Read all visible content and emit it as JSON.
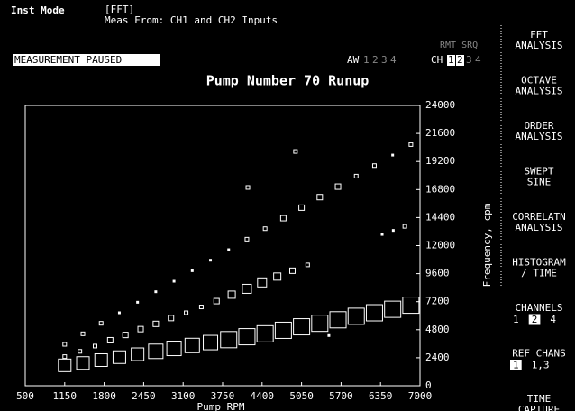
{
  "header": {
    "mode_label": "Inst Mode",
    "mode": "[FFT]",
    "meas_from": "Meas From: CH1 and CH2 Inputs",
    "status": "MEASUREMENT PAUSED",
    "rmt_srq": "RMT SRQ",
    "aw": {
      "label": "AW",
      "options": [
        "1",
        "2",
        "3",
        "4"
      ]
    },
    "ch": {
      "label": "CH",
      "options": [
        "1",
        "2",
        "3",
        "4"
      ],
      "selected": [
        0,
        1
      ]
    }
  },
  "softkeys": [
    {
      "lines": [
        "FFT",
        "ANALYSIS"
      ]
    },
    {
      "lines": [
        "OCTAVE",
        "ANALYSIS"
      ]
    },
    {
      "lines": [
        "ORDER",
        "ANALYSIS"
      ]
    },
    {
      "lines": [
        "SWEPT",
        "SINE"
      ]
    },
    {
      "lines": [
        "CORRELATN",
        "ANALYSIS"
      ]
    },
    {
      "lines": [
        "HISTOGRAM",
        "/ TIME"
      ]
    },
    {
      "lines": [
        "CHANNELS"
      ],
      "options": [
        "1",
        "2",
        "4"
      ],
      "selected": 1
    },
    {
      "lines": [
        "REF CHANS"
      ],
      "options": [
        "1",
        "1,3"
      ],
      "selected": 0
    },
    {
      "lines": [
        "TIME",
        "CAPTURE"
      ]
    }
  ],
  "chart_data": {
    "type": "bubble",
    "title": "Pump Number 70 Runup",
    "x_label": "Pump RPM",
    "y_label": "Frequency, cpm",
    "xlim": [
      500,
      7000
    ],
    "ylim": [
      0,
      24000
    ],
    "xticks": [
      500,
      1150,
      1800,
      2450,
      3100,
      3750,
      4400,
      5050,
      5700,
      6350,
      7000
    ],
    "yticks": [
      0,
      2400,
      4800,
      7200,
      9600,
      12000,
      14400,
      16800,
      19200,
      21600,
      24000
    ],
    "color": "#ffffff",
    "series": [
      {
        "x": [
          1150,
          1450,
          1750,
          2050,
          2350,
          2650,
          2950,
          3250,
          3550,
          3850,
          4150,
          4450,
          4750,
          5050,
          5350,
          5650,
          5950,
          6250,
          6550,
          6850
        ],
        "y": [
          1750,
          1950,
          2200,
          2450,
          2700,
          2950,
          3200,
          3450,
          3700,
          3950,
          4200,
          4450,
          4750,
          5050,
          5350,
          5650,
          5950,
          6250,
          6550,
          6900
        ],
        "size": [
          6,
          6,
          6,
          6,
          6,
          7,
          7,
          7,
          7,
          8,
          8,
          8,
          8,
          8,
          8,
          8,
          8,
          8,
          8,
          8
        ]
      },
      {
        "x": [
          1150,
          1400,
          1650,
          1900,
          2150,
          2400,
          2650,
          2900,
          3150,
          3400,
          3650,
          3900,
          4150,
          4400,
          4650,
          4900,
          5150
        ],
        "y": [
          2500,
          2950,
          3400,
          3900,
          4350,
          4850,
          5300,
          5800,
          6250,
          6750,
          7250,
          7800,
          8300,
          8850,
          9350,
          9850,
          10350
        ],
        "size": [
          1,
          1,
          1,
          2,
          2,
          2,
          2,
          2,
          1,
          1,
          2,
          3,
          4,
          4,
          3,
          2,
          1
        ]
      },
      {
        "x": [
          1150,
          1450,
          1750,
          2050,
          2350,
          2650,
          2950,
          3250,
          3550,
          3850,
          4150,
          4450,
          4750,
          5050,
          5350,
          5650,
          5950,
          6250,
          6550,
          6850
        ],
        "y": [
          3550,
          4450,
          5350,
          6250,
          7150,
          8050,
          8950,
          9850,
          10750,
          11650,
          12550,
          13450,
          14350,
          15250,
          16150,
          17050,
          17950,
          18850,
          19750,
          20650
        ],
        "size": [
          1,
          1,
          1,
          0,
          0,
          0,
          0,
          0,
          0,
          0,
          1,
          1,
          2,
          2,
          2,
          2,
          1,
          1,
          0,
          1
        ]
      },
      {
        "x": [
          4950,
          4166,
          6377,
          6560,
          6750,
          5500
        ],
        "y": [
          20060,
          16980,
          12960,
          13300,
          13650,
          4300
        ],
        "size": [
          1,
          1,
          0,
          0,
          1,
          0
        ]
      }
    ]
  }
}
